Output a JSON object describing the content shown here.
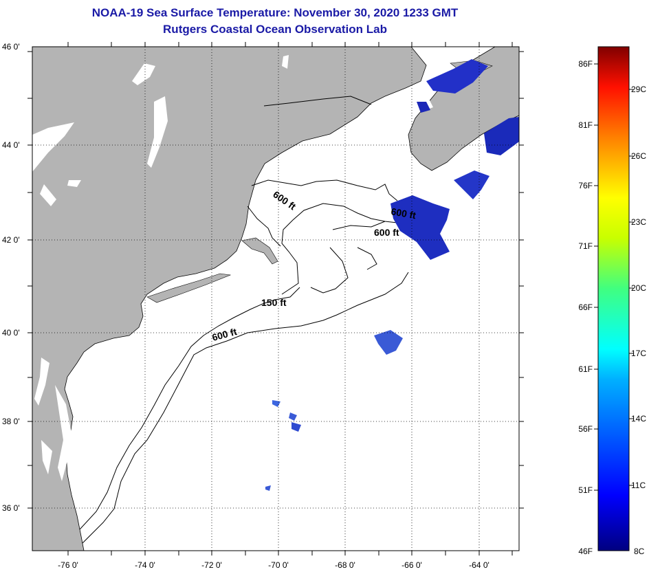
{
  "header": {
    "title": "NOAA-19 Sea Surface Temperature:  November 30, 2020 1233 GMT",
    "subtitle": "Rutgers Coastal Ocean Observation Lab"
  },
  "map": {
    "lat_labels": [
      "46 0'",
      "44 0'",
      "42 0'",
      "40 0'",
      "38 0'",
      "36 0'"
    ],
    "lon_labels": [
      "-76 0'",
      "-74 0'",
      "-72 0'",
      "-70 0'",
      "-68 0'",
      "-66 0'",
      "-64 0'"
    ],
    "isobath_labels": [
      "600 ft",
      "600 ft",
      "600 ft",
      "150 ft",
      "600 ft"
    ],
    "colors": {
      "land": "#b4b4b4",
      "cloud": "#ffffff",
      "ocean_sst": "#1a2fc8",
      "grid": "#000000"
    }
  },
  "colorbar": {
    "fahrenheit_labels": [
      "86F",
      "81F",
      "76F",
      "71F",
      "66F",
      "61F",
      "56F",
      "51F",
      "46F"
    ],
    "celsius_labels": [
      "29C",
      "26C",
      "23C",
      "20C",
      "17C",
      "14C",
      "11C",
      "8C"
    ]
  }
}
